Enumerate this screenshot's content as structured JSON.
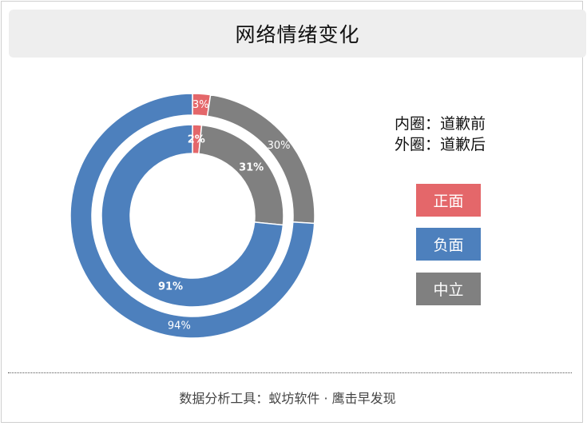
{
  "title": "网络情绪变化",
  "captions": {
    "inner": "内圈：道歉前",
    "outer": "外圈：道歉后"
  },
  "legend": [
    {
      "label": "正面",
      "color": "#e4676a"
    },
    {
      "label": "负面",
      "color": "#4d80bd"
    },
    {
      "label": "中立",
      "color": "#808080"
    }
  ],
  "chart_data": {
    "type": "pie",
    "subtype": "nested-donut",
    "series": [
      {
        "name": "内圈：道歉前",
        "ring": "inner",
        "categories": [
          "正面",
          "中立",
          "负面"
        ],
        "values": [
          2,
          31,
          91
        ],
        "labels": [
          "2%",
          "31%",
          "91%"
        ]
      },
      {
        "name": "外圈：道歉后",
        "ring": "outer",
        "categories": [
          "正面",
          "中立",
          "负面"
        ],
        "values": [
          3,
          30,
          94
        ],
        "labels": [
          "3%",
          "30%",
          "94%"
        ]
      }
    ],
    "colors": {
      "正面": "#e4676a",
      "负面": "#4d80bd",
      "中立": "#808080"
    }
  },
  "footer": "数据分析工具：蚁坊软件 · 鹰击早发现"
}
